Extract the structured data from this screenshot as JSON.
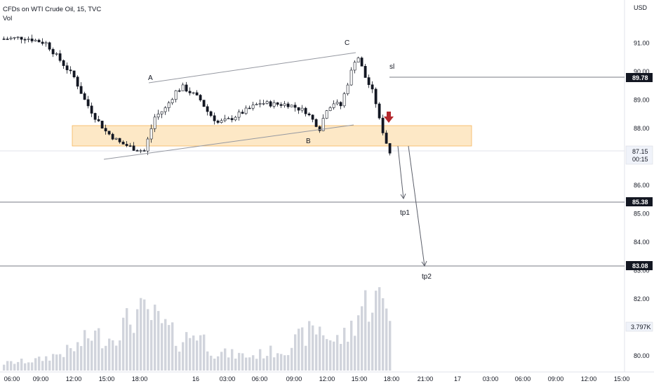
{
  "header": {
    "title": "CFDs on WTI Crude Oil, 15, TVC",
    "indicator": "Vol"
  },
  "price_axis": {
    "currency": "USD",
    "ticks": [
      "91.00",
      "90.00",
      "89.00",
      "88.00",
      "87.00",
      "86.00",
      "85.00",
      "84.00",
      "83.00",
      "82.00",
      "81.00",
      "80.00"
    ]
  },
  "time_axis": {
    "ticks": [
      "06:00",
      "09:00",
      "12:00",
      "15:00",
      "18:00",
      "16",
      "03:00",
      "06:00",
      "09:00",
      "12:00",
      "15:00",
      "18:00",
      "21:00",
      "17",
      "03:00",
      "06:00",
      "09:00",
      "12:00",
      "15:00"
    ]
  },
  "price_tags": {
    "sl": "89.78",
    "tp1": "85.38",
    "tp2": "83.08",
    "last_price": "87.15",
    "countdown": "00:15",
    "volume": "3.797K"
  },
  "annotations": {
    "a": "A",
    "b": "B",
    "c": "C",
    "sl": "sl",
    "tp1": "tp1",
    "tp2": "tp2"
  },
  "colors": {
    "candle": "#131722",
    "zone_fill": "#fde2b8",
    "zone_border": "#f5b55a",
    "arrow": "#b3282d",
    "volume_bar": "#d1d4dc",
    "level_line": "#787b86"
  },
  "chart_data": {
    "type": "candlestick",
    "timeframe": "15",
    "symbol": "CFDs on WTI Crude Oil",
    "ylim": [
      79.6,
      92.2
    ],
    "levels": [
      {
        "name": "sl",
        "price": 89.78
      },
      {
        "name": "tp1",
        "price": 85.38
      },
      {
        "name": "tp2",
        "price": 83.08
      },
      {
        "name": "last",
        "price": 87.15
      }
    ],
    "zone": {
      "low": 87.3,
      "high": 88.05
    },
    "points": [
      {
        "label": "A",
        "price": 89.55
      },
      {
        "label": "B",
        "price": 87.8
      },
      {
        "label": "C",
        "price": 90.65
      }
    ],
    "close_path": [
      [
        0,
        91.15
      ],
      [
        6,
        91.2
      ],
      [
        12,
        91.0
      ],
      [
        16,
        90.4
      ],
      [
        20,
        89.8
      ],
      [
        23,
        89.0
      ],
      [
        26,
        88.4
      ],
      [
        29,
        87.9
      ],
      [
        33,
        87.5
      ],
      [
        37,
        87.3
      ],
      [
        40,
        87.2
      ],
      [
        43,
        88.4
      ],
      [
        46,
        88.7
      ],
      [
        49,
        89.3
      ],
      [
        51,
        89.45
      ],
      [
        54,
        89.2
      ],
      [
        56,
        89.0
      ],
      [
        58,
        88.6
      ],
      [
        61,
        88.2
      ],
      [
        64,
        88.3
      ],
      [
        67,
        88.5
      ],
      [
        70,
        88.7
      ],
      [
        73,
        88.9
      ],
      [
        77,
        88.85
      ],
      [
        81,
        88.85
      ],
      [
        84,
        88.7
      ],
      [
        86,
        88.6
      ],
      [
        88,
        88.3
      ],
      [
        90,
        88.0
      ],
      [
        92,
        88.7
      ],
      [
        94,
        88.9
      ],
      [
        96,
        88.8
      ],
      [
        98,
        89.6
      ],
      [
        100,
        90.4
      ],
      [
        101,
        90.5
      ],
      [
        103,
        89.8
      ],
      [
        105,
        89.3
      ],
      [
        106,
        88.9
      ],
      [
        107,
        88.3
      ],
      [
        108,
        87.9
      ],
      [
        109,
        87.5
      ],
      [
        110,
        87.15
      ]
    ],
    "volume_profile": [
      [
        0,
        0.1
      ],
      [
        10,
        0.15
      ],
      [
        20,
        0.3
      ],
      [
        25,
        0.5
      ],
      [
        30,
        0.45
      ],
      [
        38,
        0.8
      ],
      [
        42,
        0.75
      ],
      [
        46,
        0.6
      ],
      [
        50,
        0.4
      ],
      [
        55,
        0.55
      ],
      [
        60,
        0.25
      ],
      [
        70,
        0.2
      ],
      [
        80,
        0.3
      ],
      [
        86,
        0.5
      ],
      [
        90,
        0.6
      ],
      [
        94,
        0.4
      ],
      [
        98,
        0.5
      ],
      [
        102,
        0.9
      ],
      [
        105,
        1.0
      ],
      [
        108,
        0.95
      ],
      [
        110,
        0.85
      ]
    ]
  }
}
